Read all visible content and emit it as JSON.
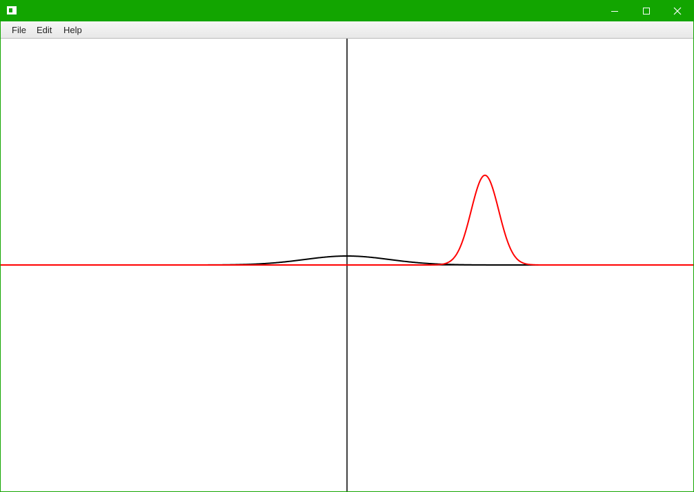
{
  "window": {
    "title": "",
    "controls": {
      "minimize": "minimize-icon",
      "maximize": "maximize-icon",
      "close": "close-icon"
    },
    "frame_color": "#12a500"
  },
  "menubar": {
    "items": [
      {
        "label": "File"
      },
      {
        "label": "Edit"
      },
      {
        "label": "Help"
      }
    ]
  },
  "plot": {
    "axes_color": "#000000",
    "curves": [
      {
        "color": "#000000",
        "shape": "gaussian",
        "relative_height": 0.1,
        "relative_center": 0.0
      },
      {
        "color": "#ff0000",
        "shape": "gaussian",
        "relative_height": 1.0,
        "relative_center": 0.8
      }
    ]
  }
}
